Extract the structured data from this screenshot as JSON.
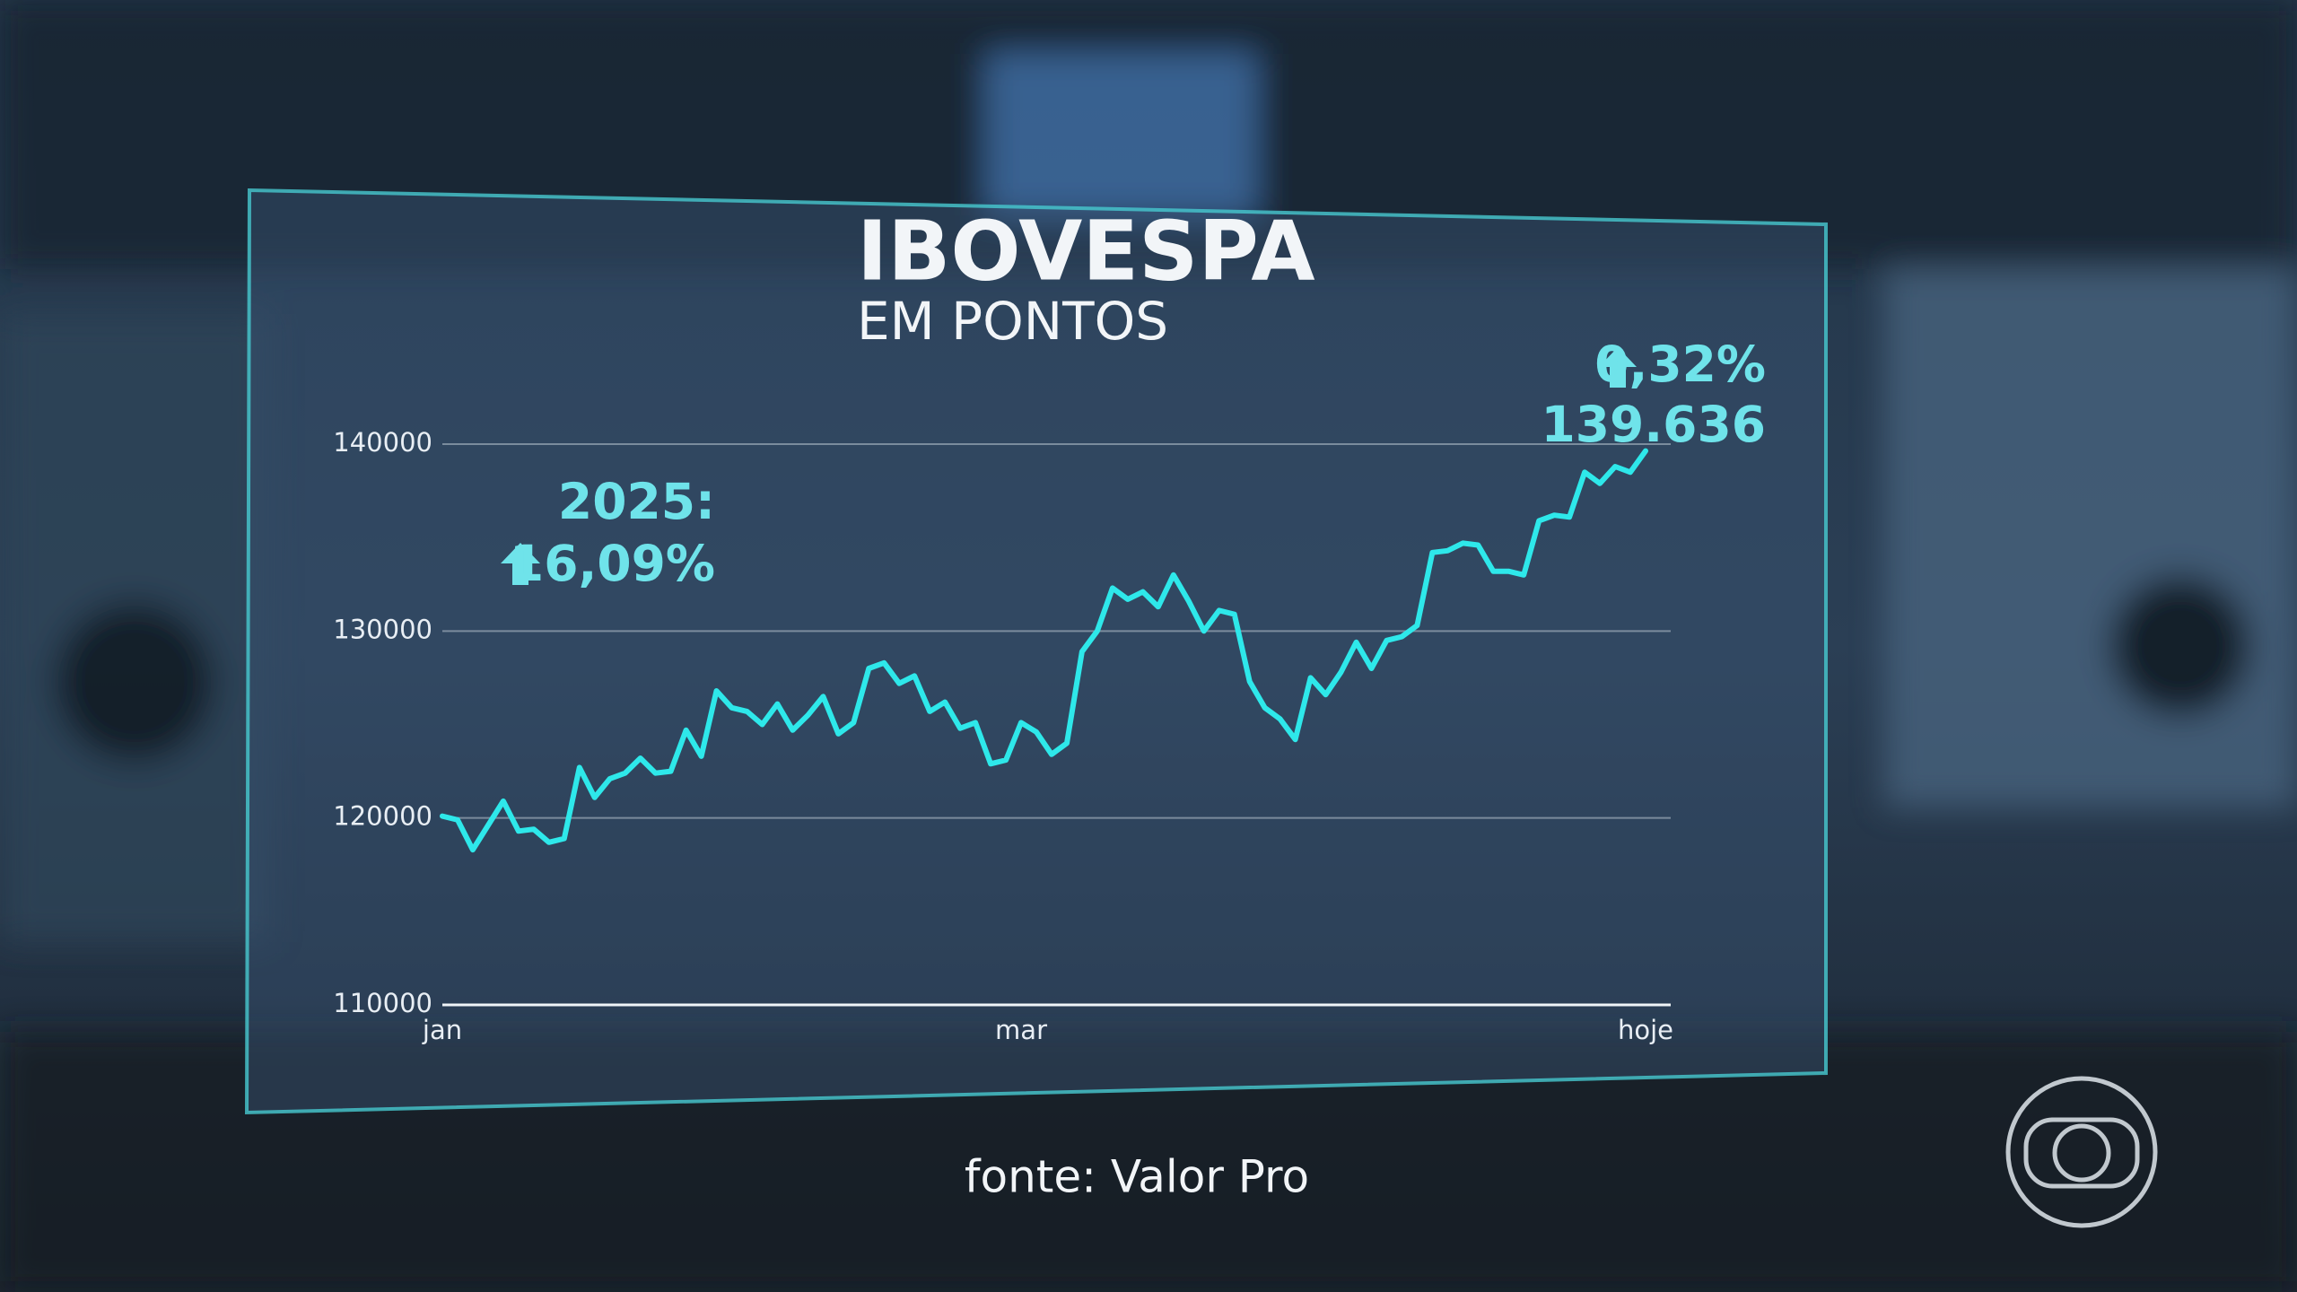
{
  "chart_data": {
    "type": "line",
    "title": "IBOVESPA",
    "subtitle": "EM PONTOS",
    "annotations": [
      "2025:",
      "16,09%",
      "0,32%"
    ],
    "source": "fonte: Valor Pro",
    "categories": [
      "jan",
      null,
      null,
      null,
      null,
      null,
      null,
      null,
      null,
      null,
      null,
      null,
      null,
      null,
      null,
      null,
      null,
      null,
      null,
      null,
      null,
      null,
      null,
      null,
      null,
      null,
      null,
      null,
      null,
      null,
      null,
      null,
      null,
      null,
      null,
      null,
      null,
      null,
      "mar",
      null,
      null,
      null,
      null,
      null,
      null,
      null,
      null,
      null,
      null,
      null,
      null,
      null,
      null,
      null,
      null,
      null,
      null,
      null,
      null,
      null,
      null,
      null,
      null,
      null,
      null,
      null,
      null,
      null,
      null,
      null,
      null,
      null,
      null,
      null,
      null,
      null,
      null,
      null,
      null,
      "hoje"
    ],
    "values": [
      120100,
      119900,
      118300,
      119600,
      120900,
      119300,
      119400,
      118700,
      118900,
      122700,
      121100,
      122100,
      122400,
      123200,
      122400,
      122500,
      124700,
      123300,
      126800,
      125900,
      125700,
      125000,
      126100,
      124700,
      125500,
      126500,
      124500,
      125100,
      128000,
      128300,
      127200,
      127600,
      125700,
      126200,
      124800,
      125100,
      122900,
      123100,
      125100,
      124600,
      123400,
      124000,
      128900,
      130000,
      132300,
      131700,
      132100,
      131300,
      133000,
      131600,
      130000,
      131100,
      130900,
      127300,
      125900,
      125300,
      124200,
      127500,
      126600,
      127800,
      129400,
      128000,
      129500,
      129700,
      130300,
      134200,
      134300,
      134700,
      134600,
      133200,
      133200,
      133000,
      135900,
      136200,
      136100,
      138500,
      137900,
      138800,
      138500,
      139636
    ],
    "value_labels": [
      null,
      null,
      null,
      null,
      null,
      null,
      null,
      null,
      null,
      null,
      null,
      null,
      null,
      null,
      null,
      null,
      null,
      null,
      null,
      null,
      null,
      null,
      null,
      null,
      null,
      null,
      null,
      null,
      null,
      null,
      null,
      null,
      null,
      null,
      null,
      null,
      null,
      null,
      null,
      null,
      null,
      null,
      null,
      null,
      null,
      null,
      null,
      null,
      null,
      null,
      null,
      null,
      null,
      null,
      null,
      null,
      null,
      null,
      null,
      null,
      null,
      null,
      null,
      null,
      null,
      null,
      null,
      null,
      null,
      null,
      null,
      null,
      null,
      null,
      null,
      null,
      null,
      null,
      null,
      "139.636"
    ],
    "color": "#2ee8ea",
    "ylim": [
      110000,
      140000
    ],
    "yticks": [
      110000,
      120000,
      130000,
      140000
    ],
    "grid": true
  }
}
